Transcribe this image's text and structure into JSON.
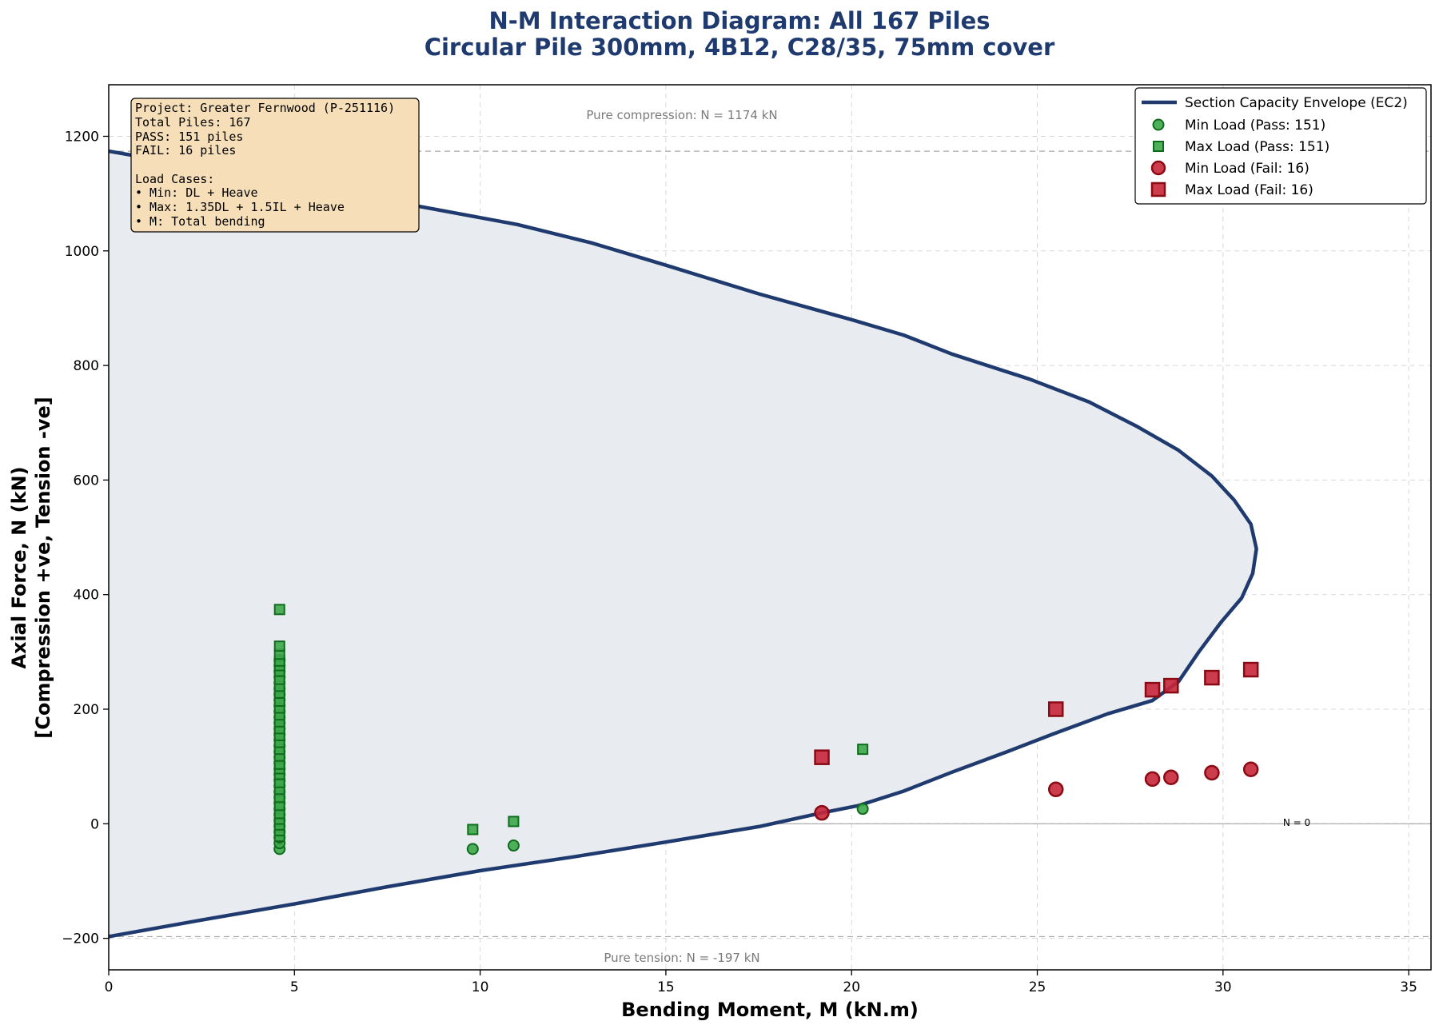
{
  "chart_data": {
    "type": "scatter",
    "title": "N-M Interaction Diagram: All 167 Piles",
    "subtitle": "Circular Pile 300mm, 4B12, C28/35, 75mm cover",
    "xlabel": "Bending Moment, M (kN.m)",
    "ylabel": "Axial Force, N (kN)",
    "ylabel2": "[Compression +ve, Tension -ve]",
    "xlim": [
      0,
      35.6
    ],
    "ylim": [
      -255,
      1290
    ],
    "x_ticks": [
      "0",
      "5",
      "10",
      "15",
      "20",
      "25",
      "30",
      "35"
    ],
    "y_ticks": [
      "−200",
      "0",
      "200",
      "400",
      "600",
      "800",
      "1000",
      "1200"
    ],
    "grid": true,
    "legend_position": "top-right",
    "colors": {
      "envelope": "#1f3a6e",
      "envelope_fill": "#e8ebf0",
      "pass_fill": "#3da84a",
      "pass_edge": "#0f6b1c",
      "fail_fill": "#c8273a",
      "fail_edge": "#8b0a14",
      "title": "#1f3a6e",
      "info_box_fill": "#f5deb8"
    },
    "envelope": {
      "name": "Section Capacity Envelope (EC2)",
      "points": [
        [
          0,
          1174
        ],
        [
          5,
          1118
        ],
        [
          11,
          1046
        ],
        [
          13,
          1014
        ],
        [
          15,
          975
        ],
        [
          17.5,
          925
        ],
        [
          20,
          880
        ],
        [
          21.4,
          853
        ],
        [
          22.7,
          820
        ],
        [
          24.8,
          776
        ],
        [
          26.4,
          736
        ],
        [
          27.7,
          693
        ],
        [
          28.8,
          652
        ],
        [
          29.7,
          607
        ],
        [
          30.3,
          565
        ],
        [
          30.75,
          523
        ],
        [
          30.9,
          480
        ],
        [
          30.8,
          437
        ],
        [
          30.5,
          394
        ],
        [
          29.95,
          352
        ],
        [
          29.35,
          300
        ],
        [
          28.8,
          248
        ],
        [
          28.1,
          215
        ],
        [
          26.9,
          192
        ],
        [
          25.4,
          156
        ],
        [
          24.2,
          126
        ],
        [
          22.7,
          90
        ],
        [
          21.4,
          57
        ],
        [
          20.2,
          32
        ],
        [
          19.2,
          19
        ],
        [
          17.5,
          -5
        ],
        [
          15,
          -32
        ],
        [
          12.5,
          -58
        ],
        [
          10,
          -82
        ],
        [
          7.5,
          -110
        ],
        [
          5,
          -140
        ],
        [
          2.5,
          -168
        ],
        [
          0,
          -197
        ]
      ]
    },
    "series": [
      {
        "name": "Min Load (Pass: 151)",
        "marker": "circle",
        "points": [
          [
            4.6,
            -44
          ],
          [
            4.6,
            -34
          ],
          [
            4.6,
            -24
          ],
          [
            4.6,
            -14
          ],
          [
            4.6,
            -4
          ],
          [
            4.6,
            6
          ],
          [
            4.6,
            16
          ],
          [
            4.6,
            26
          ],
          [
            4.6,
            36
          ],
          [
            4.6,
            46
          ],
          [
            4.6,
            56
          ],
          [
            4.6,
            66
          ],
          [
            4.6,
            76
          ],
          [
            4.6,
            86
          ],
          [
            4.6,
            96
          ],
          [
            4.6,
            106
          ],
          [
            4.6,
            116
          ],
          [
            4.6,
            126
          ],
          [
            4.6,
            136
          ],
          [
            4.6,
            146
          ],
          [
            4.6,
            156
          ],
          [
            4.6,
            166
          ],
          [
            4.6,
            176
          ],
          [
            4.6,
            186
          ],
          [
            4.6,
            196
          ],
          [
            4.6,
            206
          ],
          [
            4.6,
            216
          ],
          [
            4.6,
            226
          ],
          [
            4.6,
            236
          ],
          [
            4.6,
            246
          ],
          [
            4.6,
            256
          ],
          [
            4.6,
            266
          ],
          [
            4.6,
            276
          ],
          [
            4.6,
            286
          ],
          [
            9.8,
            -44
          ],
          [
            10.9,
            -38
          ],
          [
            20.3,
            26
          ]
        ]
      },
      {
        "name": "Max Load (Pass: 151)",
        "marker": "square",
        "points": [
          [
            4.6,
            -22
          ],
          [
            4.6,
            -12
          ],
          [
            4.6,
            -2
          ],
          [
            4.6,
            8
          ],
          [
            4.6,
            18
          ],
          [
            4.6,
            32
          ],
          [
            4.6,
            46
          ],
          [
            4.6,
            60
          ],
          [
            4.6,
            72
          ],
          [
            4.6,
            86
          ],
          [
            4.6,
            96
          ],
          [
            4.6,
            104
          ],
          [
            4.6,
            118
          ],
          [
            4.6,
            130
          ],
          [
            4.6,
            142
          ],
          [
            4.6,
            154
          ],
          [
            4.6,
            166
          ],
          [
            4.6,
            178
          ],
          [
            4.6,
            190
          ],
          [
            4.6,
            202
          ],
          [
            4.6,
            214
          ],
          [
            4.6,
            228
          ],
          [
            4.6,
            240
          ],
          [
            4.6,
            252
          ],
          [
            4.6,
            266
          ],
          [
            4.6,
            276
          ],
          [
            4.6,
            284
          ],
          [
            4.6,
            296
          ],
          [
            4.6,
            310
          ],
          [
            4.6,
            374
          ],
          [
            9.8,
            -10
          ],
          [
            10.9,
            4
          ],
          [
            20.3,
            130
          ]
        ]
      },
      {
        "name": "Min Load (Fail: 16)",
        "marker": "circle",
        "points": [
          [
            19.2,
            19
          ],
          [
            25.5,
            60
          ],
          [
            28.1,
            78
          ],
          [
            28.6,
            81
          ],
          [
            29.7,
            89
          ],
          [
            30.75,
            95
          ]
        ]
      },
      {
        "name": "Max Load (Fail: 16)",
        "marker": "square",
        "points": [
          [
            19.2,
            116
          ],
          [
            25.5,
            200
          ],
          [
            28.1,
            234
          ],
          [
            28.6,
            241
          ],
          [
            29.7,
            255
          ],
          [
            30.75,
            269
          ]
        ]
      }
    ],
    "annotations": {
      "pure_compression": "Pure compression: N = 1174 kN",
      "pure_tension": "Pure tension: N = -197 kN",
      "zero_line": "N = 0"
    },
    "reference_lines_y": [
      1174,
      -197,
      0
    ],
    "info_box": [
      "Project: Greater Fernwood (P-251116)",
      "Total Piles: 167",
      "PASS: 151 piles",
      "FAIL: 16 piles",
      "",
      "Load Cases:",
      "• Min: DL + Heave",
      "• Max: 1.35DL + 1.5IL + Heave",
      "• M: Total bending"
    ]
  }
}
